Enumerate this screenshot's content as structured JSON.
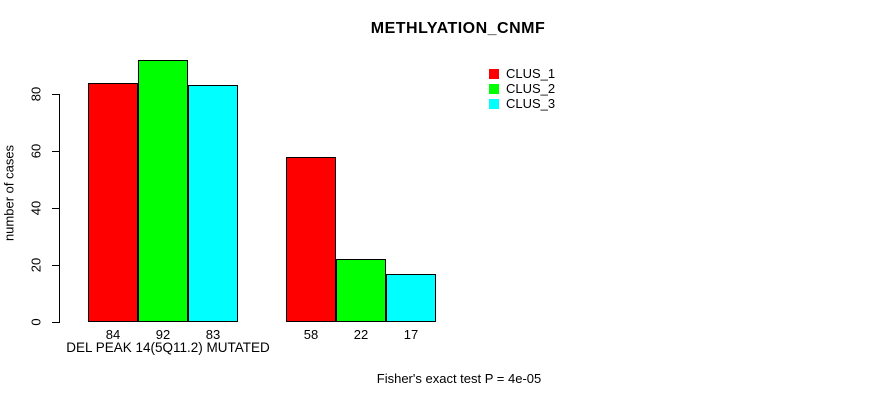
{
  "chart_data": {
    "type": "bar",
    "title": "METHLYATION_CNMF",
    "ylabel": "number of cases",
    "xlabel": "DEL PEAK 14(5Q11.2) MUTATED",
    "annotation": "Fisher's exact test P = 4e-05",
    "yticks": [
      0,
      20,
      40,
      60,
      80
    ],
    "ylim": [
      0,
      92
    ],
    "grid": false,
    "legend_position": "top-right",
    "series": [
      {
        "name": "CLUS_1",
        "color": "#ff0000"
      },
      {
        "name": "CLUS_2",
        "color": "#00ff00"
      },
      {
        "name": "CLUS_3",
        "color": "#00ffff"
      }
    ],
    "categories": [
      "DEL PEAK 14(5Q11.2) MUTATED",
      ""
    ],
    "groups": [
      {
        "values": [
          84,
          92,
          83
        ]
      },
      {
        "values": [
          58,
          22,
          17
        ]
      }
    ]
  }
}
